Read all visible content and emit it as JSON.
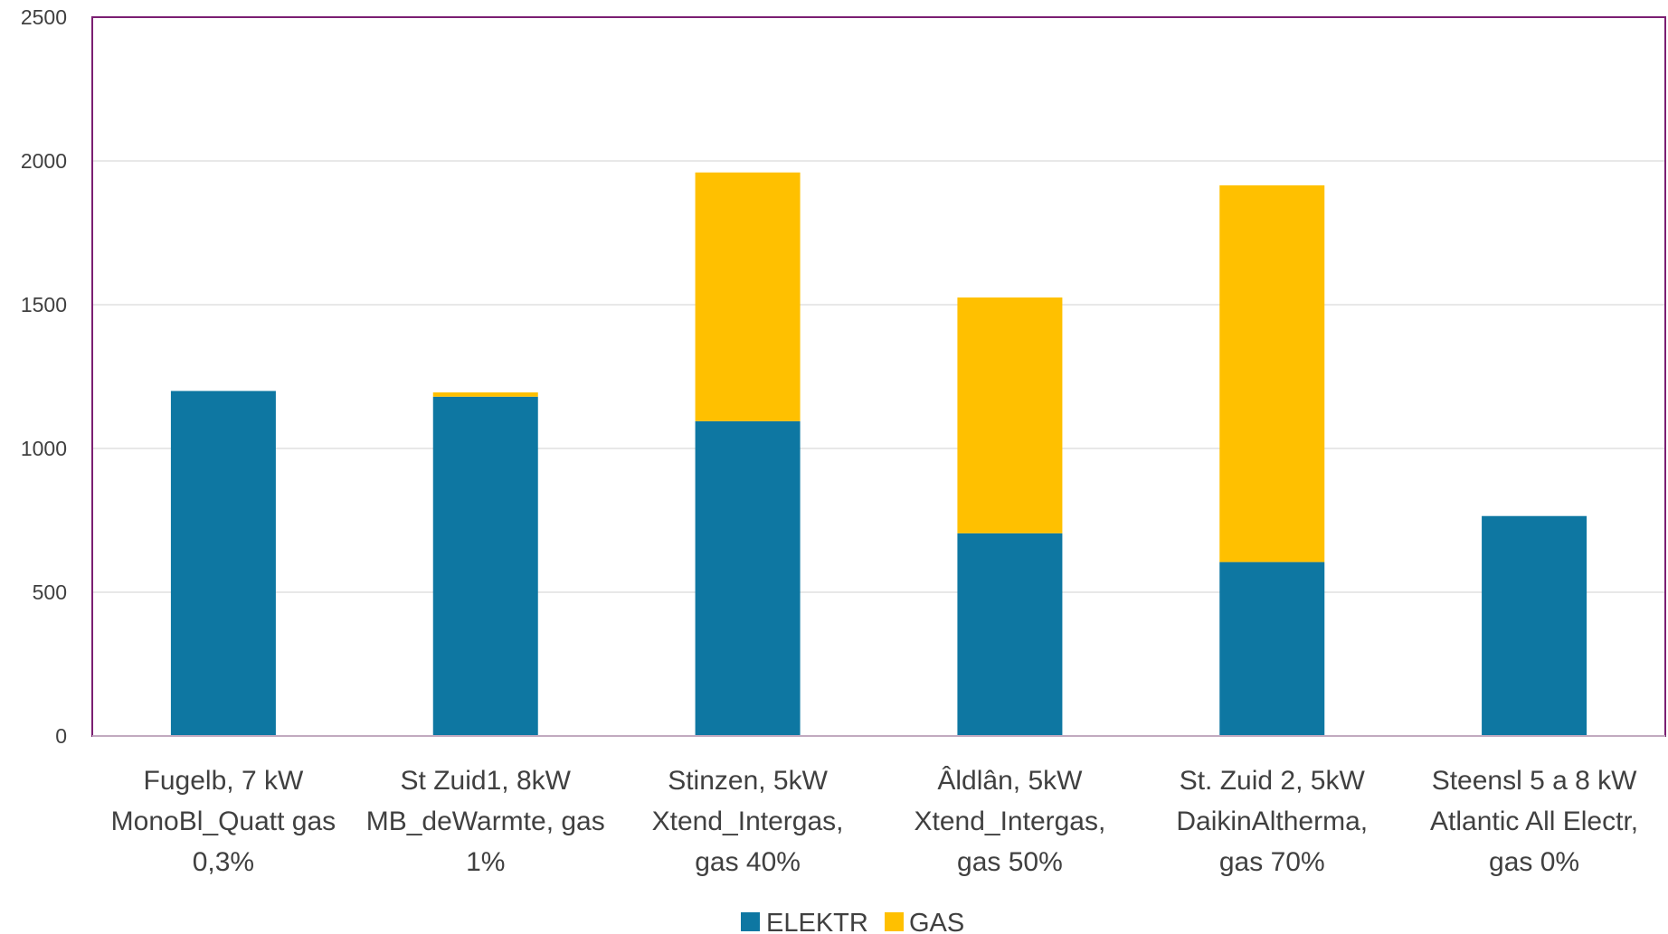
{
  "chart_data": {
    "type": "bar",
    "stacked": true,
    "categories": [
      [
        "Fugelb, 7 kW",
        "MonoBl_Quatt gas",
        "0,3%"
      ],
      [
        "St Zuid1, 8kW",
        "MB_deWarmte, gas",
        "1%"
      ],
      [
        "Stinzen, 5kW",
        "Xtend_Intergas,",
        "gas 40%"
      ],
      [
        "Âldlân, 5kW",
        "Xtend_Intergas,",
        "gas 50%"
      ],
      [
        "St. Zuid 2, 5kW",
        "DaikinAltherma,",
        "gas 70%"
      ],
      [
        "Steensl 5 a 8 kW",
        "Atlantic All Electr,",
        "gas 0%"
      ]
    ],
    "series": [
      {
        "name": "ELEKTR",
        "color": "#0e77a2",
        "values": [
          1200,
          1180,
          1095,
          705,
          605,
          765
        ]
      },
      {
        "name": "GAS",
        "color": "#ffc000",
        "values": [
          0,
          15,
          865,
          820,
          1310,
          0
        ]
      }
    ],
    "ylim": [
      0,
      2500
    ],
    "yticks": [
      "0",
      "500",
      "1000",
      "1500",
      "2000",
      "2500"
    ],
    "grid": true,
    "legend": "bottom",
    "frame_color": "#7b1f72"
  }
}
